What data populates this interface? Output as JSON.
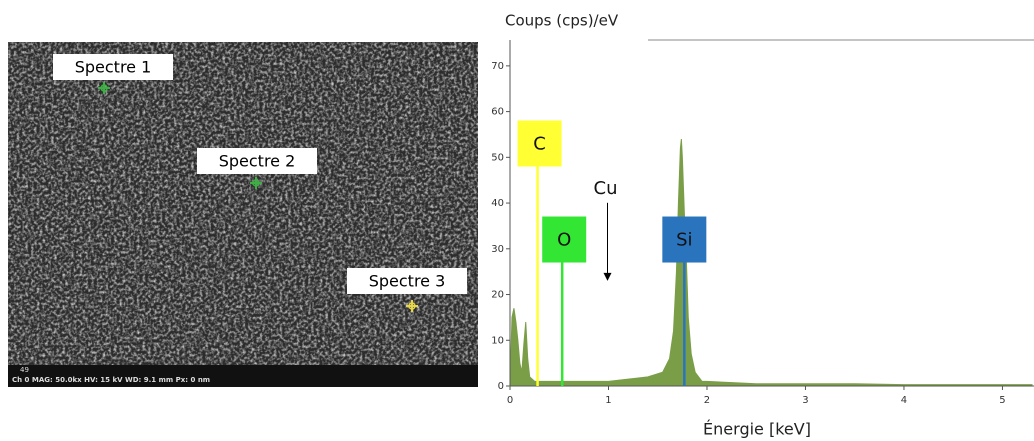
{
  "image": {
    "labels": [
      {
        "text": "Spectre 1",
        "marker_color": "#3cb043"
      },
      {
        "text": "Spectre 2",
        "marker_color": "#3cb043"
      },
      {
        "text": "Spectre 3",
        "marker_color": "#e8d64a"
      }
    ],
    "info_line1": "49",
    "info_line2": "Ch 0   MAG: 50.0kx   HV: 15 kV   WD: 9.1 mm   Px: 0 nm"
  },
  "chart_data": {
    "type": "area",
    "ylabel": "Coups (cps)/eV",
    "xlabel": "Énergie [keV]",
    "color": "#7a9e48",
    "x": [
      0,
      0.02,
      0.04,
      0.06,
      0.08,
      0.1,
      0.12,
      0.14,
      0.16,
      0.18,
      0.2,
      0.25,
      0.3,
      0.4,
      0.5,
      0.6,
      0.8,
      1.0,
      1.2,
      1.4,
      1.55,
      1.62,
      1.66,
      1.69,
      1.71,
      1.73,
      1.74,
      1.75,
      1.77,
      1.79,
      1.81,
      1.84,
      1.88,
      1.95,
      2.0,
      2.5,
      3.0,
      3.5,
      4.0,
      5.0,
      5.3
    ],
    "values": [
      0,
      15,
      17,
      14,
      10,
      5,
      3,
      9,
      14,
      6,
      2,
      1,
      1,
      1,
      1,
      1,
      1,
      1,
      1.5,
      2,
      3,
      6,
      12,
      25,
      40,
      52,
      54,
      50,
      38,
      28,
      15,
      7,
      3,
      1,
      1,
      0.5,
      0.5,
      0.5,
      0.3,
      0.3,
      0.3
    ],
    "xlim": [
      0,
      5.3
    ],
    "ylim": [
      0,
      75
    ],
    "xticks": [
      0,
      1,
      2,
      3,
      4,
      5
    ],
    "yticks": [
      0,
      10,
      20,
      30,
      40,
      50,
      60,
      70
    ],
    "annotations": [
      {
        "label": "C",
        "x": 0.28,
        "y": 48,
        "color": "#ffff33"
      },
      {
        "label": "O",
        "x": 0.53,
        "y": 27,
        "color": "#33e633"
      },
      {
        "label": "Si",
        "x": 1.77,
        "y": 27,
        "color": "#2a74bd"
      }
    ],
    "arrow_annotation": {
      "label": "Cu",
      "x": 0.99,
      "y": 23
    }
  }
}
